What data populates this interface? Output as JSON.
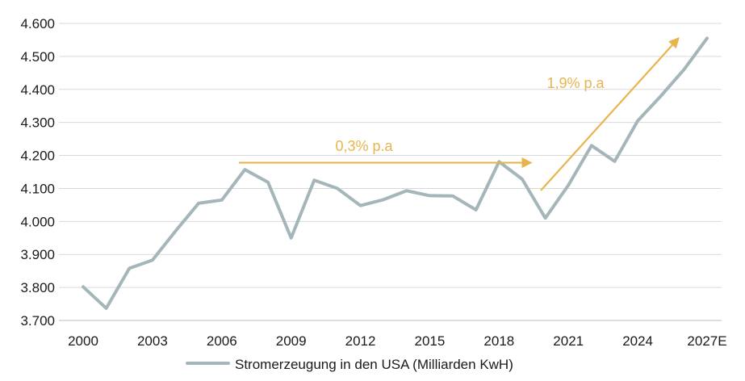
{
  "chart_data": {
    "type": "line",
    "title": "",
    "xlabel": "",
    "ylabel": "",
    "x": [
      "2000",
      "2001",
      "2002",
      "2003",
      "2004",
      "2005",
      "2006",
      "2007",
      "2008",
      "2009",
      "2010",
      "2011",
      "2012",
      "2013",
      "2014",
      "2015",
      "2016",
      "2017",
      "2018",
      "2019",
      "2020",
      "2021",
      "2022",
      "2023",
      "2024",
      "2025",
      "2026",
      "2027E"
    ],
    "x_tick_labels": [
      "2000",
      "2003",
      "2006",
      "2009",
      "2012",
      "2015",
      "2018",
      "2021",
      "2024",
      "2027E"
    ],
    "y_tick_labels": [
      "3.700",
      "3.800",
      "3.900",
      "4.000",
      "4.100",
      "4.200",
      "4.300",
      "4.400",
      "4.500",
      "4.600"
    ],
    "ylim": [
      3700,
      4600
    ],
    "grid": "horizontal",
    "legend_position": "bottom-center",
    "series": [
      {
        "name": "Stromerzeugung in den USA (Milliarden KwH)",
        "color": "#a5b6bb",
        "values": [
          3802,
          3737,
          3858,
          3883,
          3971,
          4055,
          4065,
          4157,
          4119,
          3950,
          4125,
          4100,
          4048,
          4066,
          4093,
          4078,
          4077,
          4035,
          4181,
          4128,
          4010,
          4110,
          4230,
          4182,
          4305,
          4380,
          4460,
          4555
        ]
      }
    ],
    "annotations": [
      {
        "text": "0,3% p.a",
        "color": "#e9b44c",
        "arrow_from": {
          "x": "2006",
          "y": 4178
        },
        "arrow_to": {
          "x": "2019",
          "y": 4178
        }
      },
      {
        "text": "1,9% p.a",
        "color": "#e9b44c",
        "arrow_from": {
          "x": "2019",
          "y": 4090
        },
        "arrow_to": {
          "x": "2026",
          "y": 4555
        }
      }
    ]
  }
}
